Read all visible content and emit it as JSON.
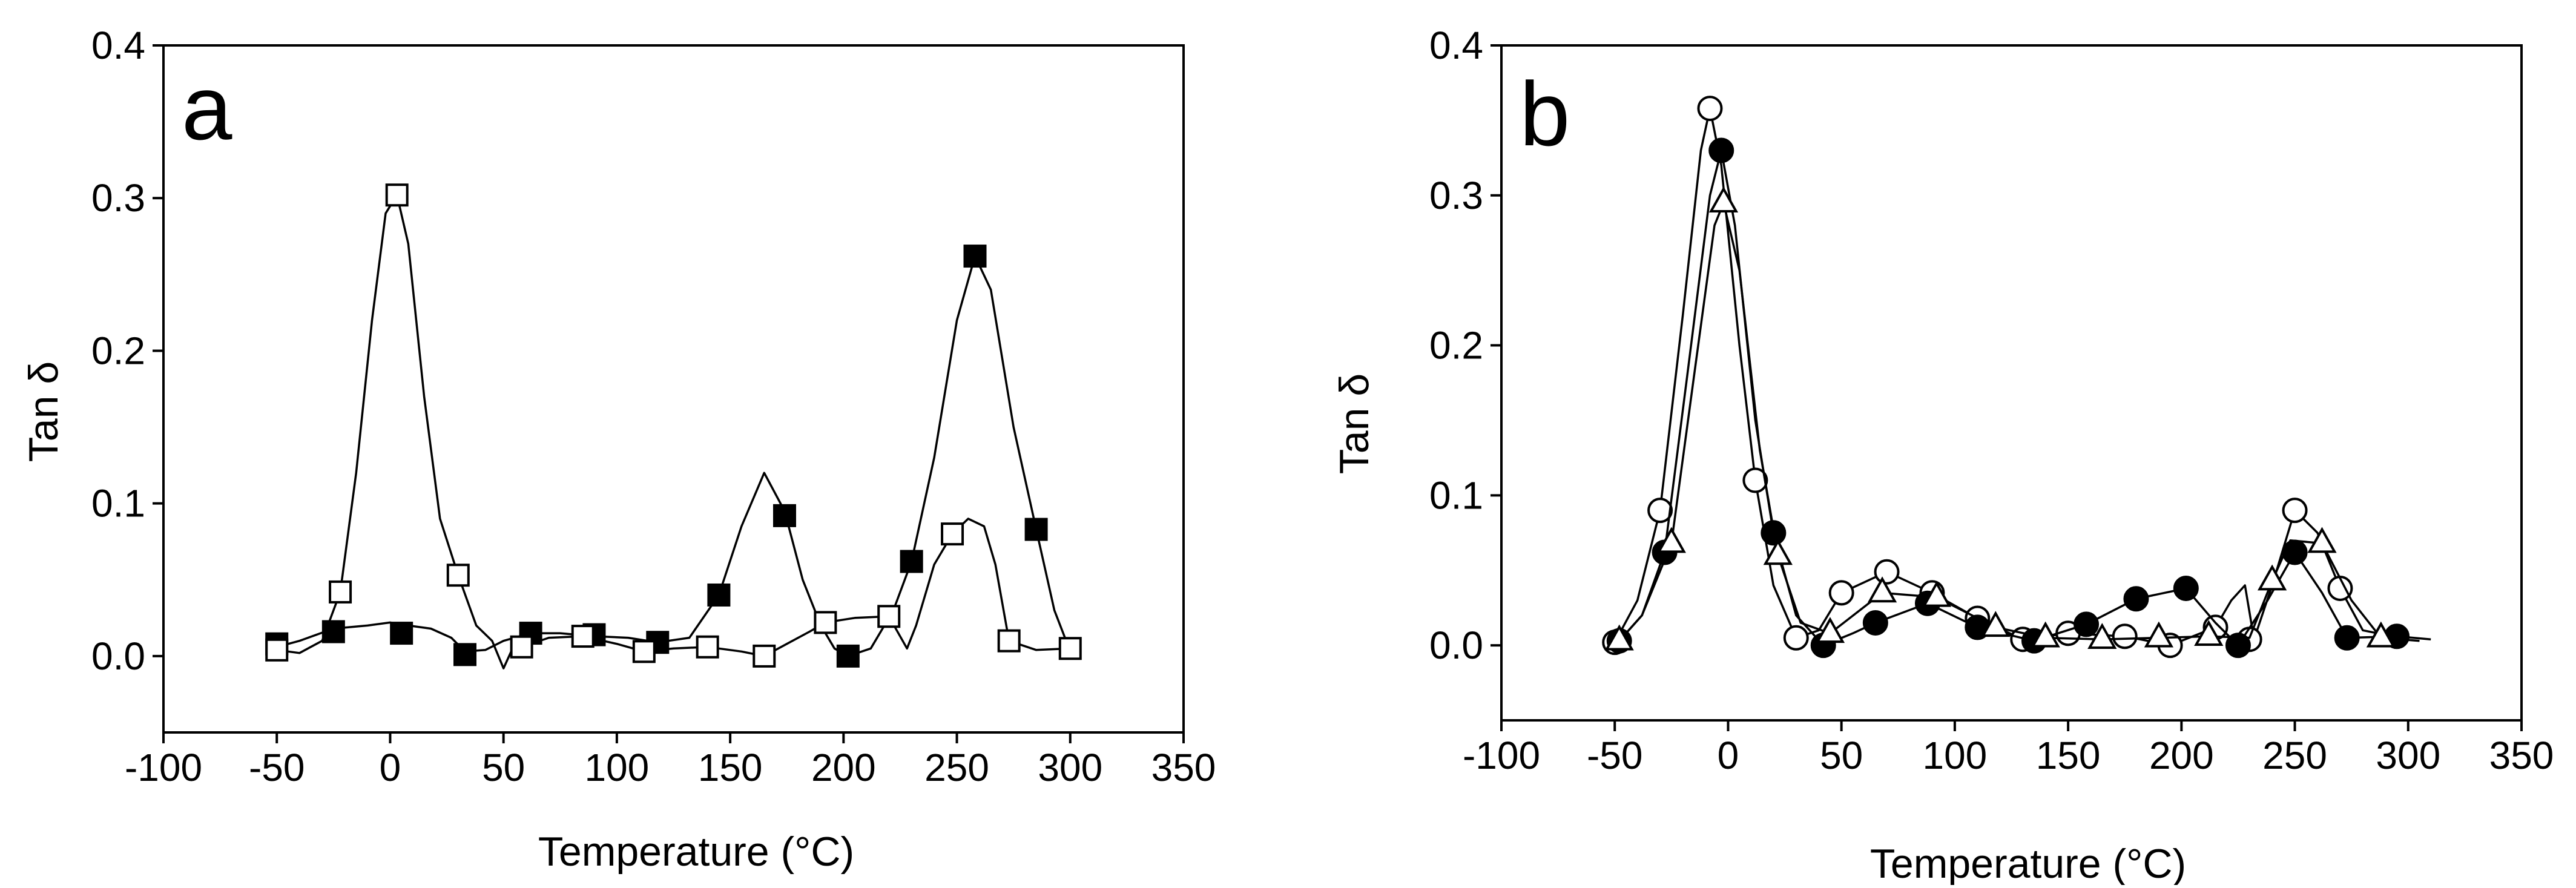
{
  "chart_data": [
    {
      "type": "line",
      "panel_label": "a",
      "xlabel": "Temperature (°C)",
      "ylabel": "Tan δ",
      "xlim": [
        -100,
        350
      ],
      "ylim": [
        -0.05,
        0.4
      ],
      "xticks": [
        -100,
        -50,
        0,
        50,
        100,
        150,
        200,
        250,
        300,
        350
      ],
      "yticks": [
        0.0,
        0.1,
        0.2,
        0.3,
        0.4
      ],
      "xtick_labels": [
        "-100",
        "-50",
        "0",
        "50",
        "100",
        "150",
        "200",
        "250",
        "300",
        "350"
      ],
      "ytick_labels": [
        "0.0",
        "0.1",
        "0.2",
        "0.3",
        "0.4"
      ],
      "grid": false,
      "series": [
        {
          "marker": "filled-square",
          "color": "#000000",
          "x": [
            -50,
            -25,
            5,
            33,
            62,
            90,
            118,
            145,
            174,
            202,
            230,
            258,
            285
          ],
          "y": [
            0.008,
            0.016,
            0.015,
            0.001,
            0.015,
            0.014,
            0.009,
            0.04,
            0.092,
            0.0,
            0.062,
            0.262,
            0.083
          ],
          "curve": [
            [
              -50,
              0.006
            ],
            [
              -40,
              0.01
            ],
            [
              -25,
              0.018
            ],
            [
              -10,
              0.02
            ],
            [
              0,
              0.022
            ],
            [
              8,
              0.02
            ],
            [
              18,
              0.018
            ],
            [
              27,
              0.012
            ],
            [
              33,
              0.003
            ],
            [
              42,
              0.004
            ],
            [
              50,
              0.01
            ],
            [
              62,
              0.015
            ],
            [
              75,
              0.015
            ],
            [
              90,
              0.013
            ],
            [
              105,
              0.012
            ],
            [
              118,
              0.009
            ],
            [
              132,
              0.012
            ],
            [
              145,
              0.04
            ],
            [
              155,
              0.085
            ],
            [
              165,
              0.12
            ],
            [
              174,
              0.095
            ],
            [
              182,
              0.05
            ],
            [
              190,
              0.02
            ],
            [
              196,
              0.005
            ],
            [
              202,
              0.0
            ],
            [
              212,
              0.005
            ],
            [
              222,
              0.03
            ],
            [
              230,
              0.062
            ],
            [
              240,
              0.13
            ],
            [
              250,
              0.22
            ],
            [
              258,
              0.262
            ],
            [
              265,
              0.24
            ],
            [
              275,
              0.15
            ],
            [
              285,
              0.083
            ],
            [
              293,
              0.03
            ],
            [
              300,
              0.003
            ]
          ]
        },
        {
          "marker": "open-square",
          "color": "#000000",
          "x": [
            -50,
            -22,
            3,
            30,
            58,
            85,
            112,
            140,
            165,
            192,
            220,
            248,
            273,
            300
          ],
          "y": [
            0.004,
            0.042,
            0.302,
            0.053,
            0.006,
            0.013,
            0.003,
            0.006,
            0.0,
            0.022,
            0.026,
            0.08,
            0.01,
            0.005
          ],
          "curve": [
            [
              -50,
              0.004
            ],
            [
              -40,
              0.002
            ],
            [
              -30,
              0.01
            ],
            [
              -22,
              0.042
            ],
            [
              -15,
              0.12
            ],
            [
              -8,
              0.22
            ],
            [
              -2,
              0.29
            ],
            [
              3,
              0.302
            ],
            [
              8,
              0.27
            ],
            [
              15,
              0.17
            ],
            [
              22,
              0.09
            ],
            [
              30,
              0.053
            ],
            [
              38,
              0.02
            ],
            [
              45,
              0.01
            ],
            [
              50,
              -0.008
            ],
            [
              54,
              0.005
            ],
            [
              58,
              0.006
            ],
            [
              70,
              0.012
            ],
            [
              85,
              0.013
            ],
            [
              100,
              0.008
            ],
            [
              112,
              0.003
            ],
            [
              125,
              0.005
            ],
            [
              140,
              0.006
            ],
            [
              155,
              0.003
            ],
            [
              165,
              0.0
            ],
            [
              175,
              0.008
            ],
            [
              185,
              0.016
            ],
            [
              192,
              0.022
            ],
            [
              205,
              0.025
            ],
            [
              220,
              0.026
            ],
            [
              228,
              0.005
            ],
            [
              232,
              0.02
            ],
            [
              240,
              0.06
            ],
            [
              248,
              0.08
            ],
            [
              255,
              0.09
            ],
            [
              262,
              0.085
            ],
            [
              267,
              0.06
            ],
            [
              273,
              0.01
            ],
            [
              285,
              0.004
            ],
            [
              300,
              0.005
            ]
          ]
        }
      ]
    },
    {
      "type": "line",
      "panel_label": "b",
      "xlabel": "Temperature (°C)",
      "ylabel": "Tan δ",
      "xlim": [
        -100,
        350
      ],
      "ylim": [
        -0.05,
        0.4
      ],
      "xticks": [
        -100,
        -50,
        0,
        50,
        100,
        150,
        200,
        250,
        300,
        350
      ],
      "yticks": [
        0.0,
        0.1,
        0.2,
        0.3,
        0.4
      ],
      "xtick_labels": [
        "-100",
        "-50",
        "0",
        "50",
        "100",
        "150",
        "200",
        "250",
        "300",
        "350"
      ],
      "ytick_labels": [
        "0.0",
        "0.1",
        "0.2",
        "0.3",
        "0.4"
      ],
      "grid": false,
      "series": [
        {
          "marker": "open-circle",
          "color": "#000000",
          "x": [
            -50,
            -30,
            -8,
            12,
            30,
            50,
            70,
            90,
            110,
            130,
            150,
            175,
            195,
            215,
            230,
            250,
            270
          ],
          "y": [
            0.002,
            0.09,
            0.358,
            0.11,
            0.005,
            0.035,
            0.049,
            0.035,
            0.018,
            0.004,
            0.008,
            0.006,
            0.0,
            0.012,
            0.004,
            0.09,
            0.038
          ],
          "curve": [
            [
              -50,
              0.002
            ],
            [
              -40,
              0.03
            ],
            [
              -30,
              0.09
            ],
            [
              -20,
              0.22
            ],
            [
              -12,
              0.33
            ],
            [
              -8,
              0.358
            ],
            [
              -3,
              0.32
            ],
            [
              5,
              0.2
            ],
            [
              12,
              0.11
            ],
            [
              20,
              0.04
            ],
            [
              30,
              0.005
            ],
            [
              40,
              0.01
            ],
            [
              50,
              0.035
            ],
            [
              70,
              0.049
            ],
            [
              90,
              0.035
            ],
            [
              110,
              0.018
            ],
            [
              130,
              0.004
            ],
            [
              150,
              0.008
            ],
            [
              175,
              0.006
            ],
            [
              195,
              0.0
            ],
            [
              215,
              0.012
            ],
            [
              222,
              0.03
            ],
            [
              228,
              0.04
            ],
            [
              232,
              0.004
            ],
            [
              240,
              0.04
            ],
            [
              250,
              0.09
            ],
            [
              260,
              0.075
            ],
            [
              270,
              0.038
            ],
            [
              280,
              0.01
            ],
            [
              300,
              0.004
            ]
          ]
        },
        {
          "marker": "filled-circle",
          "color": "#000000",
          "x": [
            -48,
            -28,
            -3,
            20,
            42,
            65,
            88,
            110,
            135,
            158,
            180,
            202,
            225,
            250,
            273,
            295
          ],
          "y": [
            0.003,
            0.062,
            0.33,
            0.075,
            0.0,
            0.015,
            0.028,
            0.012,
            0.003,
            0.014,
            0.031,
            0.038,
            0.0,
            0.062,
            0.005,
            0.006
          ],
          "curve": [
            [
              -48,
              0.003
            ],
            [
              -38,
              0.02
            ],
            [
              -28,
              0.062
            ],
            [
              -18,
              0.18
            ],
            [
              -8,
              0.3
            ],
            [
              -3,
              0.33
            ],
            [
              3,
              0.28
            ],
            [
              12,
              0.15
            ],
            [
              20,
              0.075
            ],
            [
              30,
              0.02
            ],
            [
              42,
              0.0
            ],
            [
              55,
              0.008
            ],
            [
              65,
              0.015
            ],
            [
              88,
              0.028
            ],
            [
              110,
              0.012
            ],
            [
              135,
              0.003
            ],
            [
              158,
              0.014
            ],
            [
              180,
              0.031
            ],
            [
              202,
              0.038
            ],
            [
              215,
              0.015
            ],
            [
              225,
              0.0
            ],
            [
              238,
              0.03
            ],
            [
              250,
              0.062
            ],
            [
              262,
              0.035
            ],
            [
              273,
              0.005
            ],
            [
              295,
              0.006
            ],
            [
              310,
              0.004
            ]
          ]
        },
        {
          "marker": "open-triangle",
          "color": "#000000",
          "x": [
            -48,
            -25,
            -2,
            22,
            45,
            68,
            92,
            118,
            140,
            165,
            190,
            212,
            240,
            262,
            288
          ],
          "y": [
            0.003,
            0.068,
            0.295,
            0.06,
            0.008,
            0.035,
            0.032,
            0.012,
            0.005,
            0.004,
            0.005,
            0.006,
            0.043,
            0.068,
            0.005
          ],
          "curve": [
            [
              -48,
              0.003
            ],
            [
              -38,
              0.02
            ],
            [
              -25,
              0.068
            ],
            [
              -15,
              0.18
            ],
            [
              -6,
              0.28
            ],
            [
              -2,
              0.295
            ],
            [
              5,
              0.25
            ],
            [
              14,
              0.13
            ],
            [
              22,
              0.06
            ],
            [
              32,
              0.015
            ],
            [
              45,
              0.008
            ],
            [
              68,
              0.035
            ],
            [
              92,
              0.032
            ],
            [
              118,
              0.012
            ],
            [
              140,
              0.005
            ],
            [
              165,
              0.004
            ],
            [
              190,
              0.005
            ],
            [
              212,
              0.006
            ],
            [
              230,
              0.005
            ],
            [
              240,
              0.043
            ],
            [
              248,
              0.07
            ],
            [
              262,
              0.068
            ],
            [
              275,
              0.03
            ],
            [
              288,
              0.005
            ],
            [
              305,
              0.003
            ]
          ]
        }
      ]
    }
  ]
}
